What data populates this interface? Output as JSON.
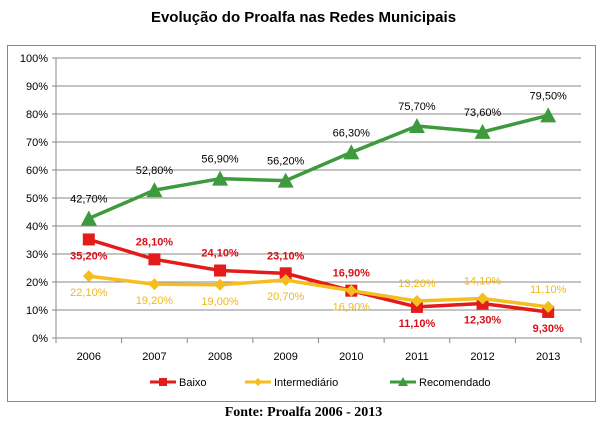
{
  "chart_data": {
    "type": "line",
    "title": "Evolução do Proalfa nas Redes Municipais",
    "source": "Fonte: Proalfa 2006 - 2013",
    "xlabel": "",
    "ylabel": "",
    "categories": [
      "2006",
      "2007",
      "2008",
      "2009",
      "2010",
      "2011",
      "2012",
      "2013"
    ],
    "ylim": [
      0,
      100
    ],
    "yticks": [
      "0%",
      "10%",
      "20%",
      "30%",
      "40%",
      "50%",
      "60%",
      "70%",
      "80%",
      "90%",
      "100%"
    ],
    "grid": true,
    "legend_position": "bottom",
    "series": [
      {
        "name": "Baixo",
        "color": "#e31b1b",
        "marker": "square",
        "values": [
          35.2,
          28.1,
          24.1,
          23.1,
          16.9,
          11.1,
          12.3,
          9.3
        ],
        "labels": [
          "35,20%",
          "28,10%",
          "24,10%",
          "23,10%",
          "16,90%",
          "11,10%",
          "12,30%",
          "9,30%"
        ],
        "label_position": [
          "below",
          "above",
          "above",
          "above",
          "above",
          "below",
          "below",
          "below"
        ]
      },
      {
        "name": "Intermediário",
        "color": "#f5bd1f",
        "marker": "diamond",
        "values": [
          22.1,
          19.2,
          19.0,
          20.7,
          16.9,
          13.2,
          14.1,
          11.1
        ],
        "labels": [
          "22,10%",
          "19,20%",
          "19,00%",
          "20,70%",
          "16,90%",
          "13,20%",
          "14,10%",
          "11,10%"
        ],
        "label_position": [
          "below",
          "below",
          "below",
          "below",
          "below",
          "above",
          "above",
          "above"
        ]
      },
      {
        "name": "Recomendado",
        "color": "#3d9a3d",
        "marker": "triangle",
        "values": [
          42.7,
          52.8,
          56.9,
          56.2,
          66.3,
          75.7,
          73.6,
          79.5
        ],
        "labels": [
          "42,70%",
          "52,80%",
          "56,90%",
          "56,20%",
          "66,30%",
          "75,70%",
          "73,60%",
          "79,50%"
        ],
        "label_position": [
          "above",
          "above",
          "above",
          "above",
          "above",
          "above",
          "above",
          "above"
        ]
      }
    ]
  }
}
